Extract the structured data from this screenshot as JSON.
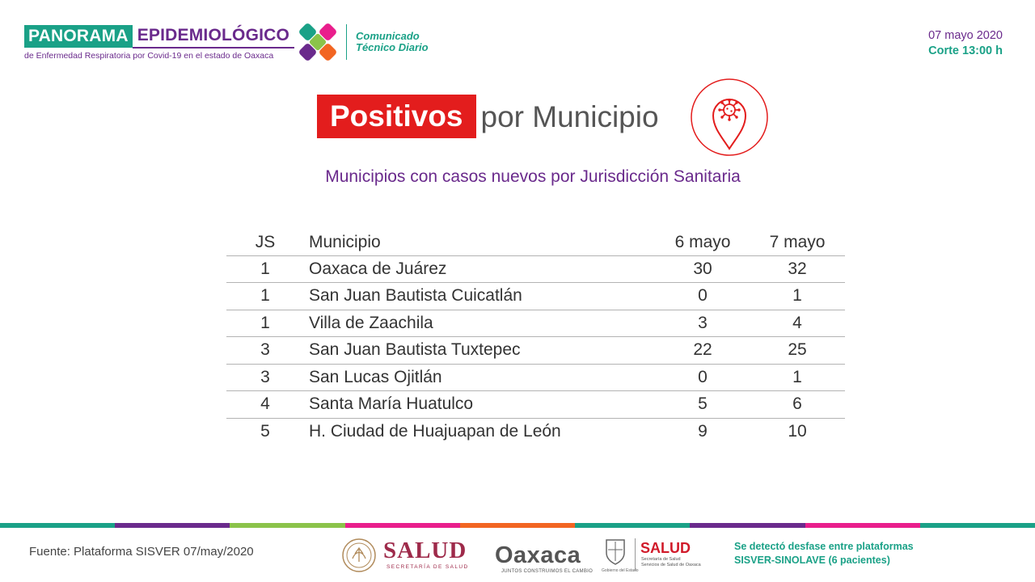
{
  "header": {
    "panorama": "PANORAMA",
    "epidemiologico": "EPIDEMIOLÓGICO",
    "subtitle": "de Enfermedad Respiratoria por Covid-19 en el estado de Oaxaca",
    "comunicado_line1": "Comunicado",
    "comunicado_line2": "Técnico Diario",
    "date": "07 mayo 2020",
    "corte": "Corte 13:00 h"
  },
  "title": {
    "highlight": "Positivos",
    "rest": "por Municipio",
    "icon": "virus-location-pin-icon"
  },
  "subtitle": "Municipios con casos nuevos por Jurisdicción Sanitaria",
  "table": {
    "headers": [
      "JS",
      "Municipio",
      "6 mayo",
      "7 mayo"
    ],
    "rows": [
      {
        "js": "1",
        "municipio": "Oaxaca de Juárez",
        "d6": "30",
        "d7": "32"
      },
      {
        "js": "1",
        "municipio": "San Juan Bautista Cuicatlán",
        "d6": "0",
        "d7": "1"
      },
      {
        "js": "1",
        "municipio": "Villa de Zaachila",
        "d6": "3",
        "d7": "4"
      },
      {
        "js": "3",
        "municipio": "San Juan Bautista Tuxtepec",
        "d6": "22",
        "d7": "25"
      },
      {
        "js": "3",
        "municipio": "San Lucas Ojitlán",
        "d6": "0",
        "d7": "1"
      },
      {
        "js": "4",
        "municipio": "Santa María Huatulco",
        "d6": "5",
        "d7": "6"
      },
      {
        "js": "5",
        "municipio": "H. Ciudad de Huajuapan de León",
        "d6": "9",
        "d7": "10"
      }
    ]
  },
  "footer": {
    "fuente": "Fuente: Plataforma SISVER 07/may/2020",
    "salud": "SALUD",
    "salud_sub": "SECRETARÍA DE SALUD",
    "oaxaca": "Oaxaca",
    "oaxaca_sub": "JUNTOS CONSTRUIMOS EL CAMBIO",
    "gobierno_sub": "Gobierno del Estado",
    "salud2": "SALUD",
    "salud2_sub_line1": "Secretaría de Salud",
    "salud2_sub_line2": "Servicios de Salud de Oaxaca",
    "desfase_line1": "Se detectó desfase entre plataformas",
    "desfase_line2": "SISVER-SINOLAVE (6 pacientes)"
  },
  "colors": {
    "teal": "#1aa187",
    "purple": "#6a2a8c",
    "red": "#e31d1d",
    "stripe": [
      "#1aa187",
      "#6a2a8c",
      "#8bc34a",
      "#e91e8c",
      "#f26522",
      "#1aa187",
      "#6a2a8c",
      "#e91e8c",
      "#1aa187"
    ]
  }
}
